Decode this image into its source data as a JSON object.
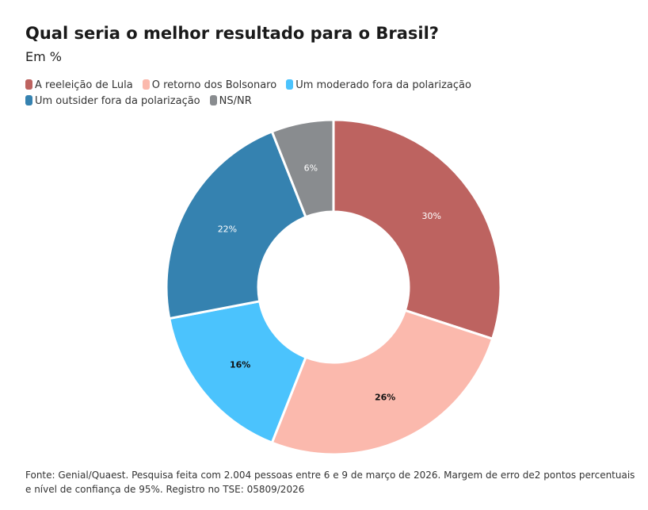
{
  "chart_data": {
    "type": "pie",
    "title": "Qual seria o melhor resultado para o Brasil?",
    "subtitle": "Em %",
    "categories": [
      "A reeleição de Lula",
      "O retorno dos Bolsonaro",
      "Um moderado fora da polarização",
      "Um outsider fora da polarização",
      "NS/NR"
    ],
    "values": [
      30,
      26,
      16,
      22,
      6
    ],
    "labels": [
      "30%",
      "26%",
      "16%",
      "22%",
      "6%"
    ],
    "colors": [
      "#bd6360",
      "#fbb9ad",
      "#4bc3fd",
      "#3582b0",
      "#898c8f"
    ],
    "label_colors": [
      "#ffffff",
      "#111111",
      "#111111",
      "#ffffff",
      "#ffffff"
    ],
    "donut": true,
    "legend_position": "top-left"
  },
  "source": "Fonte: Genial/Quaest. Pesquisa feita com 2.004 pessoas entre 6 e 9 de março de 2026. Margem de erro de2 pontos percentuais e nível de confiança de 95%. Registro no TSE: 05809/2026"
}
